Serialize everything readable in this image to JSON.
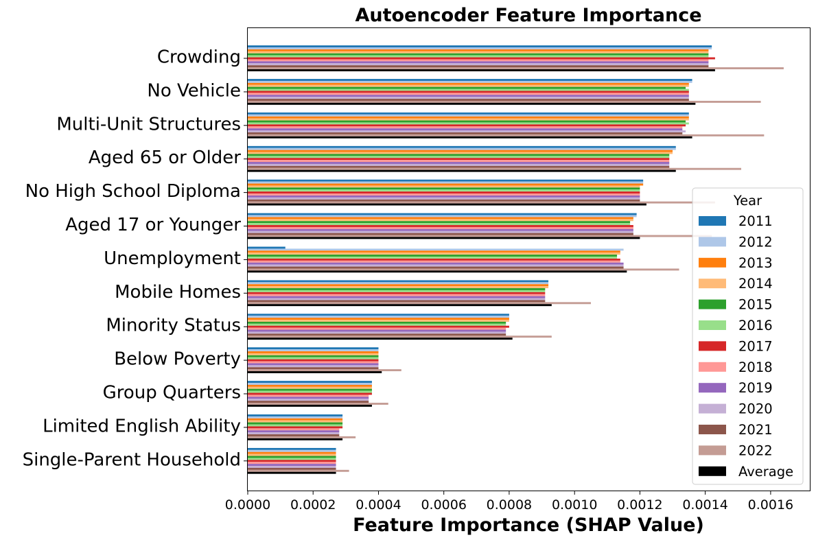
{
  "chart_data": {
    "type": "bar",
    "orientation": "horizontal",
    "title": "Autoencoder Feature Importance",
    "xlabel": "Feature Importance (SHAP Value)",
    "ylabel": "",
    "xlim": [
      0,
      0.00172
    ],
    "x_ticks": [
      "0.0000",
      "0.0002",
      "0.0004",
      "0.0006",
      "0.0008",
      "0.0010",
      "0.0012",
      "0.0014",
      "0.0016"
    ],
    "x_tick_values": [
      0,
      0.0002,
      0.0004,
      0.0006,
      0.0008,
      0.001,
      0.0012,
      0.0014,
      0.0016
    ],
    "grid": false,
    "legend": {
      "title": "Year",
      "placement": "center-right"
    },
    "categories": [
      "Crowding",
      "No Vehicle",
      "Multi-Unit Structures",
      "Aged 65 or Older",
      "No High School Diploma",
      "Aged 17 or Younger",
      "Unemployment",
      "Mobile Homes",
      "Minority Status",
      "Below Poverty",
      "Group Quarters",
      "Limited English Ability",
      "Single-Parent Household"
    ],
    "series": [
      {
        "name": "2011",
        "color": "#1f77b4",
        "values": [
          0.00142,
          0.00136,
          0.00135,
          0.00131,
          0.00121,
          0.00119,
          0.000115,
          0.00092,
          0.0008,
          0.0004,
          0.00038,
          0.00029,
          0.00027
        ]
      },
      {
        "name": "2012",
        "color": "#aec7e8",
        "values": [
          0.00142,
          0.00136,
          0.00135,
          0.00131,
          0.00121,
          0.00119,
          0.00115,
          0.00092,
          0.0008,
          0.0004,
          0.00038,
          0.00029,
          0.00027
        ]
      },
      {
        "name": "2013",
        "color": "#ff7f0e",
        "values": [
          0.00141,
          0.00135,
          0.00135,
          0.0013,
          0.00121,
          0.00118,
          0.00114,
          0.00092,
          0.0008,
          0.0004,
          0.00038,
          0.00029,
          0.00027
        ]
      },
      {
        "name": "2014",
        "color": "#ffbb78",
        "values": [
          0.00141,
          0.00135,
          0.00135,
          0.0013,
          0.0012,
          0.00118,
          0.00114,
          0.00092,
          0.0008,
          0.0004,
          0.00038,
          0.00029,
          0.00027
        ]
      },
      {
        "name": "2015",
        "color": "#2ca02c",
        "values": [
          0.00141,
          0.00134,
          0.00134,
          0.00129,
          0.0012,
          0.00117,
          0.00113,
          0.00091,
          0.00079,
          0.0004,
          0.00038,
          0.00029,
          0.00027
        ]
      },
      {
        "name": "2016",
        "color": "#98df8a",
        "values": [
          0.00141,
          0.00135,
          0.00135,
          0.00129,
          0.0012,
          0.00117,
          0.00113,
          0.00091,
          0.00079,
          0.0004,
          0.00038,
          0.00029,
          0.00027
        ]
      },
      {
        "name": "2017",
        "color": "#d62728",
        "values": [
          0.00143,
          0.00135,
          0.00134,
          0.00129,
          0.0012,
          0.00118,
          0.00114,
          0.00091,
          0.0008,
          0.0004,
          0.00038,
          0.00029,
          0.00027
        ]
      },
      {
        "name": "2018",
        "color": "#ff9896",
        "values": [
          0.00141,
          0.00135,
          0.00133,
          0.00129,
          0.0012,
          0.00118,
          0.00114,
          0.00091,
          0.00079,
          0.0004,
          0.00037,
          0.00028,
          0.00027
        ]
      },
      {
        "name": "2019",
        "color": "#9467bd",
        "values": [
          0.00141,
          0.00135,
          0.00133,
          0.00129,
          0.0012,
          0.00118,
          0.00115,
          0.00091,
          0.00079,
          0.0004,
          0.00037,
          0.00028,
          0.00027
        ]
      },
      {
        "name": "2020",
        "color": "#c5b0d5",
        "values": [
          0.00141,
          0.00135,
          0.00134,
          0.00129,
          0.0012,
          0.00118,
          0.00115,
          0.00091,
          0.00079,
          0.0004,
          0.00037,
          0.00028,
          0.00027
        ]
      },
      {
        "name": "2021",
        "color": "#8c564b",
        "values": [
          0.00141,
          0.00135,
          0.00133,
          0.00129,
          0.0012,
          0.00118,
          0.00115,
          0.00091,
          0.00079,
          0.0004,
          0.00037,
          0.00028,
          0.00027
        ]
      },
      {
        "name": "2022",
        "color": "#c49c94",
        "values": [
          0.00164,
          0.00157,
          0.00158,
          0.00151,
          0.00143,
          0.00142,
          0.00132,
          0.00105,
          0.00093,
          0.00047,
          0.00043,
          0.00033,
          0.00031
        ]
      },
      {
        "name": "Average",
        "color": "#000000",
        "values": [
          0.00143,
          0.00137,
          0.00136,
          0.00131,
          0.00122,
          0.0012,
          0.00116,
          0.00093,
          0.00081,
          0.00041,
          0.00038,
          0.00029,
          0.00027
        ]
      }
    ]
  }
}
